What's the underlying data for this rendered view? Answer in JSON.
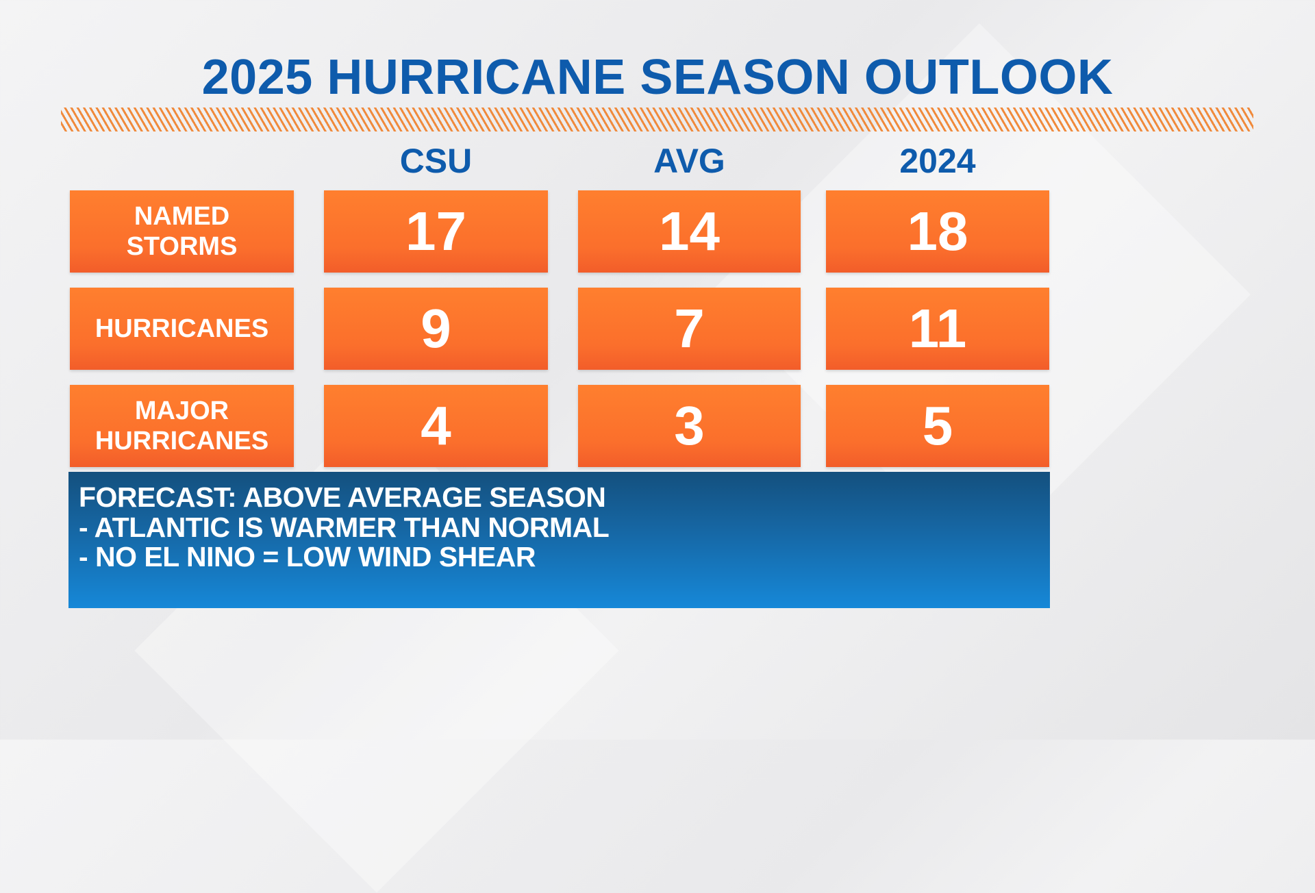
{
  "title": "2025 HURRICANE SEASON OUTLOOK",
  "columns": [
    "CSU",
    "AVG",
    "2024"
  ],
  "rows": [
    {
      "label_lines": [
        "NAMED",
        "STORMS"
      ],
      "values": [
        "17",
        "14",
        "18"
      ]
    },
    {
      "label_lines": [
        "HURRICANES"
      ],
      "values": [
        "9",
        "7",
        "11"
      ]
    },
    {
      "label_lines": [
        "MAJOR",
        "HURRICANES"
      ],
      "values": [
        "4",
        "3",
        "5"
      ]
    }
  ],
  "forecast": [
    "FORECAST: ABOVE AVERAGE SEASON",
    "- ATLANTIC IS WARMER THAN NORMAL",
    "- NO EL NINO = LOW WIND SHEAR"
  ],
  "colors": {
    "title": "#0e5bac",
    "orange": "#fb6f2c",
    "blue": "#1668a6"
  }
}
